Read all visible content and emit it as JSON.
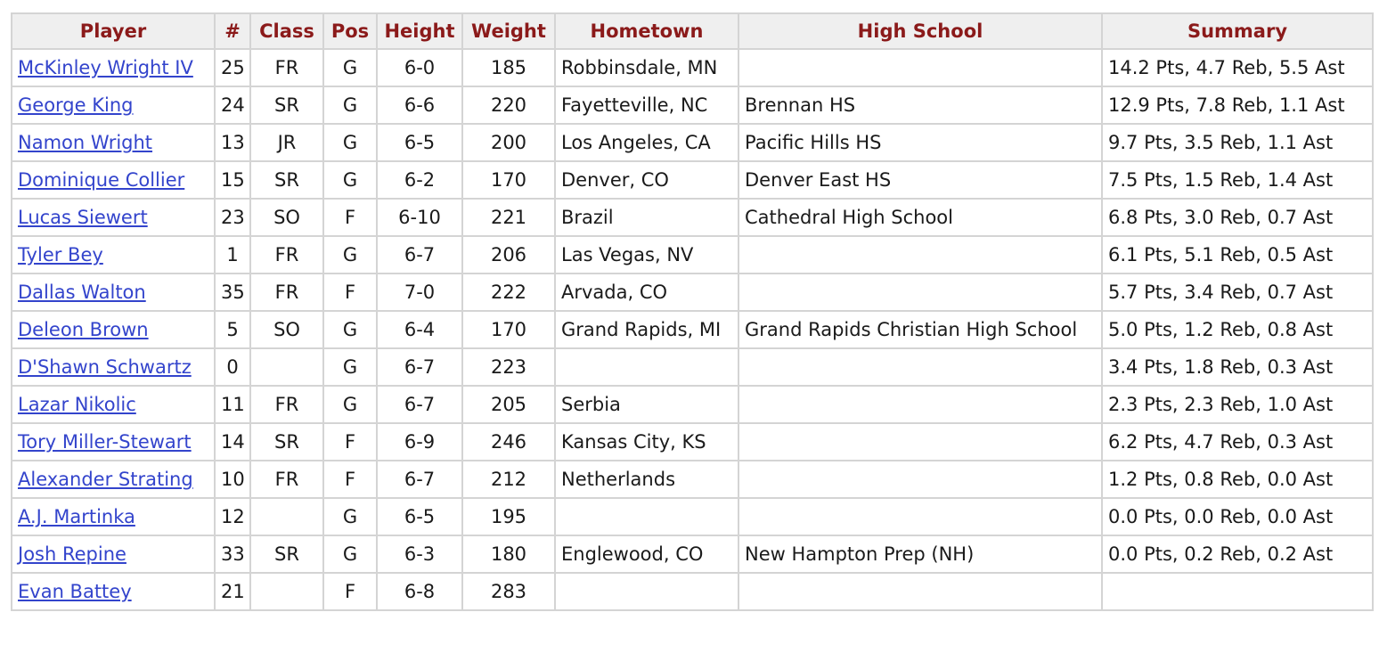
{
  "columns": [
    "Player",
    "#",
    "Class",
    "Pos",
    "Height",
    "Weight",
    "Hometown",
    "High School",
    "Summary"
  ],
  "players": [
    {
      "name": "McKinley Wright IV",
      "num": "25",
      "class": "FR",
      "pos": "G",
      "height": "6-0",
      "weight": "185",
      "hometown": "Robbinsdale, MN",
      "school": "",
      "summary": "14.2 Pts, 4.7 Reb, 5.5 Ast"
    },
    {
      "name": "George King",
      "num": "24",
      "class": "SR",
      "pos": "G",
      "height": "6-6",
      "weight": "220",
      "hometown": "Fayetteville, NC",
      "school": "Brennan HS",
      "summary": "12.9 Pts, 7.8 Reb, 1.1 Ast"
    },
    {
      "name": "Namon Wright",
      "num": "13",
      "class": "JR",
      "pos": "G",
      "height": "6-5",
      "weight": "200",
      "hometown": "Los Angeles, CA",
      "school": "Pacific Hills HS",
      "summary": "9.7 Pts, 3.5 Reb, 1.1 Ast"
    },
    {
      "name": "Dominique Collier",
      "num": "15",
      "class": "SR",
      "pos": "G",
      "height": "6-2",
      "weight": "170",
      "hometown": "Denver, CO",
      "school": "Denver East HS",
      "summary": "7.5 Pts, 1.5 Reb, 1.4 Ast"
    },
    {
      "name": "Lucas Siewert",
      "num": "23",
      "class": "SO",
      "pos": "F",
      "height": "6-10",
      "weight": "221",
      "hometown": "Brazil",
      "school": "Cathedral High School",
      "summary": "6.8 Pts, 3.0 Reb, 0.7 Ast"
    },
    {
      "name": "Tyler Bey",
      "num": "1",
      "class": "FR",
      "pos": "G",
      "height": "6-7",
      "weight": "206",
      "hometown": "Las Vegas, NV",
      "school": "",
      "summary": "6.1 Pts, 5.1 Reb, 0.5 Ast"
    },
    {
      "name": "Dallas Walton",
      "num": "35",
      "class": "FR",
      "pos": "F",
      "height": "7-0",
      "weight": "222",
      "hometown": "Arvada, CO",
      "school": "",
      "summary": "5.7 Pts, 3.4 Reb, 0.7 Ast"
    },
    {
      "name": "Deleon Brown",
      "num": "5",
      "class": "SO",
      "pos": "G",
      "height": "6-4",
      "weight": "170",
      "hometown": "Grand Rapids, MI",
      "school": "Grand Rapids Christian High School",
      "summary": "5.0 Pts, 1.2 Reb, 0.8 Ast"
    },
    {
      "name": "D'Shawn Schwartz",
      "num": "0",
      "class": "",
      "pos": "G",
      "height": "6-7",
      "weight": "223",
      "hometown": "",
      "school": "",
      "summary": "3.4 Pts, 1.8 Reb, 0.3 Ast"
    },
    {
      "name": "Lazar Nikolic",
      "num": "11",
      "class": "FR",
      "pos": "G",
      "height": "6-7",
      "weight": "205",
      "hometown": "Serbia",
      "school": "",
      "summary": "2.3 Pts, 2.3 Reb, 1.0 Ast"
    },
    {
      "name": "Tory Miller-Stewart",
      "num": "14",
      "class": "SR",
      "pos": "F",
      "height": "6-9",
      "weight": "246",
      "hometown": "Kansas City, KS",
      "school": "",
      "summary": "6.2 Pts, 4.7 Reb, 0.3 Ast"
    },
    {
      "name": "Alexander Strating",
      "num": "10",
      "class": "FR",
      "pos": "F",
      "height": "6-7",
      "weight": "212",
      "hometown": "Netherlands",
      "school": "",
      "summary": "1.2 Pts, 0.8 Reb, 0.0 Ast"
    },
    {
      "name": "A.J. Martinka",
      "num": "12",
      "class": "",
      "pos": "G",
      "height": "6-5",
      "weight": "195",
      "hometown": "",
      "school": "",
      "summary": "0.0 Pts, 0.0 Reb, 0.0 Ast"
    },
    {
      "name": "Josh Repine",
      "num": "33",
      "class": "SR",
      "pos": "G",
      "height": "6-3",
      "weight": "180",
      "hometown": "Englewood, CO",
      "school": "New Hampton Prep (NH)",
      "summary": "0.0 Pts, 0.2 Reb, 0.2 Ast"
    },
    {
      "name": "Evan Battey",
      "num": "21",
      "class": "",
      "pos": "F",
      "height": "6-8",
      "weight": "283",
      "hometown": "",
      "school": "",
      "summary": ""
    }
  ],
  "colors": {
    "header_text": "#8b1a1a",
    "header_bg": "#efefef",
    "link": "#3344cc",
    "border": "#d4d4d4"
  }
}
